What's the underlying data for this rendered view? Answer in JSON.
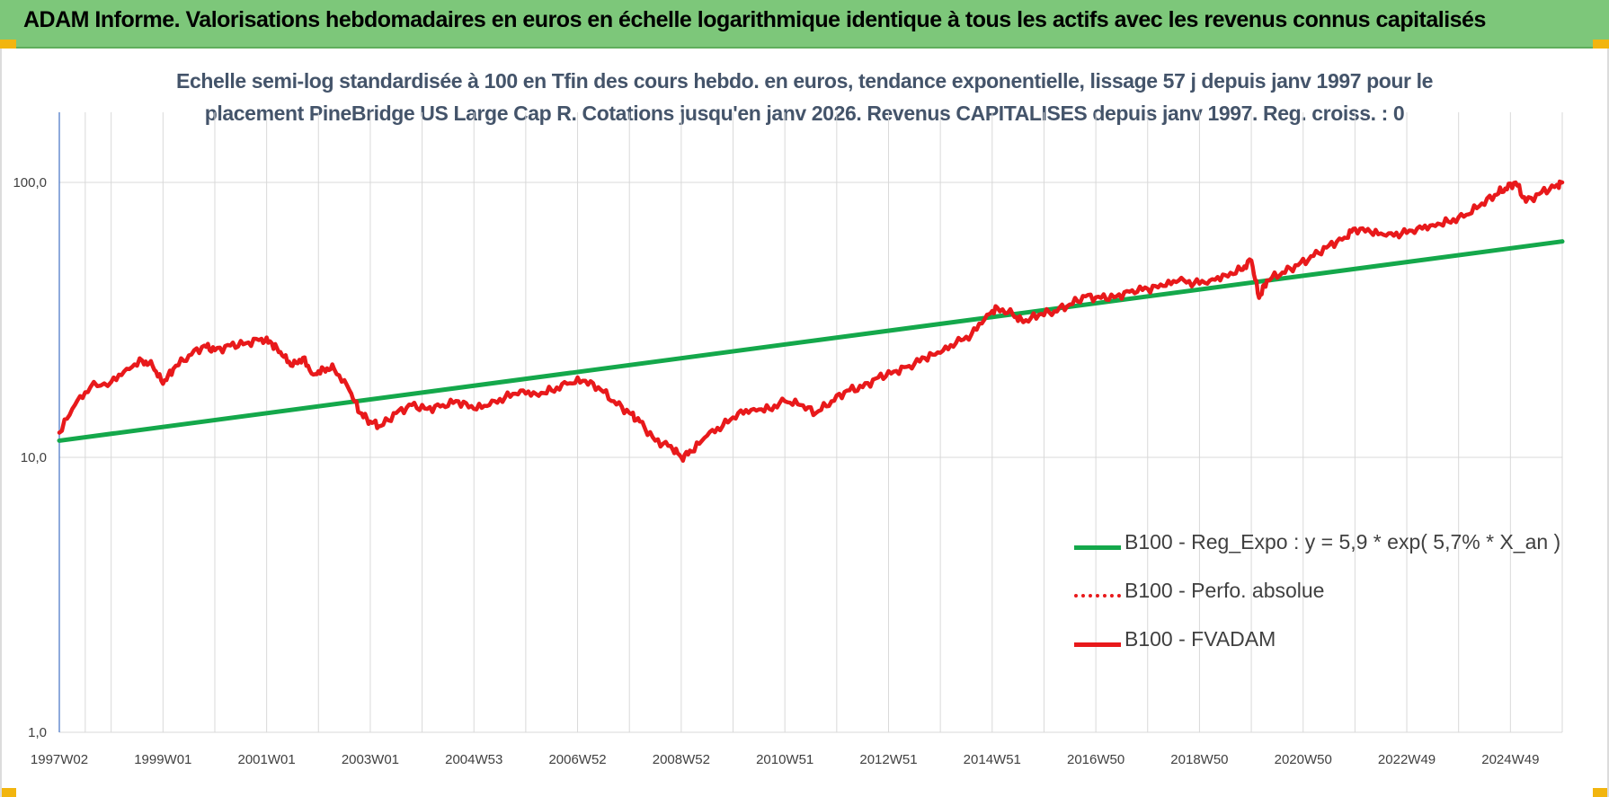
{
  "banner": {
    "title": "ADAM Informe. Valorisations hebdomadaires en euros en échelle logarithmique identique à tous les actifs avec les revenus connus capitalisés"
  },
  "colors": {
    "banner_bg": "#7dc77a",
    "regression": "#14a84b",
    "fvadam": "#e8191b",
    "perfo": "#e8191b",
    "title_text": "#44546a",
    "grid": "#d9d9d9"
  },
  "chart_data": {
    "type": "line",
    "title_line1": "Echelle semi-log standardisée à 100 en Tfin des cours hebdo. en euros, tendance exponentielle, lissage 57 j depuis janv 1997 pour le",
    "title_line2": "placement PineBridge US Large Cap R. Cotations jusqu'en janv 2026. Revenus CAPITALISES depuis janv 1997. Reg. croiss. : 0",
    "y_scale": "log",
    "ylim": [
      1,
      180
    ],
    "y_ticks": [
      1,
      10,
      100
    ],
    "y_tick_labels": [
      "1,0",
      "10,0",
      "100,0"
    ],
    "xlim": [
      1997.0,
      2026.0
    ],
    "x_tick_labels": [
      "1997W02",
      "1999W01",
      "2001W01",
      "2003W01",
      "2004W53",
      "2006W52",
      "2008W52",
      "2010W51",
      "2012W51",
      "2014W51",
      "2016W50",
      "2018W50",
      "2020W50",
      "2022W49",
      "2024W49"
    ],
    "x_ticks": [
      1997.0,
      1999.0,
      2001.0,
      2003.0,
      2005.0,
      2007.0,
      2009.0,
      2011.0,
      2013.0,
      2015.0,
      2017.0,
      2019.0,
      2021.0,
      2023.0,
      2025.0
    ],
    "vertical_grid_years": [
      1997.5,
      1998,
      1999,
      2000,
      2001,
      2002,
      2003,
      2004,
      2005,
      2006,
      2007,
      2008,
      2009,
      2010,
      2011,
      2012,
      2013,
      2014,
      2015,
      2016,
      2017,
      2018,
      2019,
      2020,
      2021,
      2022,
      2023,
      2024,
      2025,
      2026
    ],
    "grid": true,
    "legend_position": "bottom-right",
    "series": [
      {
        "name": "B100 - Reg_Expo : y = 5,9 * exp( 5,7% *  X_an )",
        "style": "solid-green",
        "x": [
          1997.0,
          2026.0
        ],
        "y": [
          11.5,
          61.0
        ]
      },
      {
        "name": "B100 - Perfo. absolue",
        "style": "dotted-red",
        "x": [],
        "y": []
      },
      {
        "name": "B100 - FVADAM",
        "style": "solid-red",
        "x": [
          1997.0,
          1997.3,
          1997.6,
          1998.0,
          1998.3,
          1998.6,
          1998.8,
          1999.0,
          1999.2,
          1999.5,
          1999.8,
          2000.0,
          2000.3,
          2000.6,
          2000.9,
          2001.1,
          2001.3,
          2001.5,
          2001.7,
          2001.9,
          2002.1,
          2002.3,
          2002.6,
          2002.8,
          2003.0,
          2003.2,
          2003.5,
          2003.8,
          2004.1,
          2004.4,
          2004.7,
          2005.0,
          2005.3,
          2005.6,
          2005.9,
          2006.2,
          2006.5,
          2006.8,
          2007.1,
          2007.4,
          2007.7,
          2008.0,
          2008.2,
          2008.5,
          2008.8,
          2009.0,
          2009.2,
          2009.5,
          2009.8,
          2010.1,
          2010.4,
          2010.7,
          2011.0,
          2011.3,
          2011.6,
          2011.9,
          2012.2,
          2012.5,
          2012.8,
          2013.1,
          2013.4,
          2013.7,
          2014.0,
          2014.3,
          2014.6,
          2014.9,
          2015.1,
          2015.4,
          2015.6,
          2015.9,
          2016.2,
          2016.5,
          2016.8,
          2017.1,
          2017.4,
          2017.7,
          2018.0,
          2018.3,
          2018.6,
          2018.9,
          2019.2,
          2019.5,
          2019.8,
          2020.0,
          2020.15,
          2020.3,
          2020.6,
          2020.9,
          2021.2,
          2021.5,
          2021.8,
          2022.0,
          2022.3,
          2022.6,
          2022.9,
          2023.2,
          2023.5,
          2023.8,
          2024.1,
          2024.4,
          2024.7,
          2024.9,
          2025.1,
          2025.3,
          2025.6,
          2025.9,
          2026.0
        ],
        "y": [
          12.3,
          15.5,
          18.0,
          18.8,
          21.0,
          22.5,
          21.5,
          18.5,
          21.0,
          23.5,
          25.5,
          24.5,
          25.5,
          26.0,
          27.0,
          26.0,
          23.5,
          21.5,
          23.0,
          20.0,
          21.0,
          21.0,
          17.5,
          14.5,
          13.5,
          13.0,
          14.5,
          15.5,
          15.0,
          15.5,
          16.0,
          15.0,
          15.5,
          16.5,
          17.5,
          17.0,
          17.5,
          18.5,
          19.0,
          18.0,
          16.0,
          14.5,
          13.5,
          11.5,
          11.0,
          10.0,
          10.5,
          12.0,
          13.0,
          14.5,
          15.0,
          15.0,
          16.0,
          15.5,
          14.5,
          16.0,
          17.5,
          18.0,
          19.5,
          20.5,
          21.5,
          23.0,
          24.0,
          26.0,
          28.0,
          33.0,
          35.0,
          33.0,
          31.0,
          33.0,
          34.0,
          36.0,
          38.5,
          38.0,
          38.5,
          40.5,
          41.0,
          42.0,
          44.0,
          43.0,
          44.0,
          46.0,
          48.0,
          52.0,
          38.0,
          44.0,
          47.0,
          50.0,
          54.0,
          59.0,
          63.0,
          68.0,
          66.0,
          64.0,
          65.0,
          68.0,
          70.0,
          72.0,
          75.0,
          82.0,
          90.0,
          95.0,
          100.0,
          85.0,
          92.0,
          98.0,
          100.0
        ]
      }
    ]
  }
}
